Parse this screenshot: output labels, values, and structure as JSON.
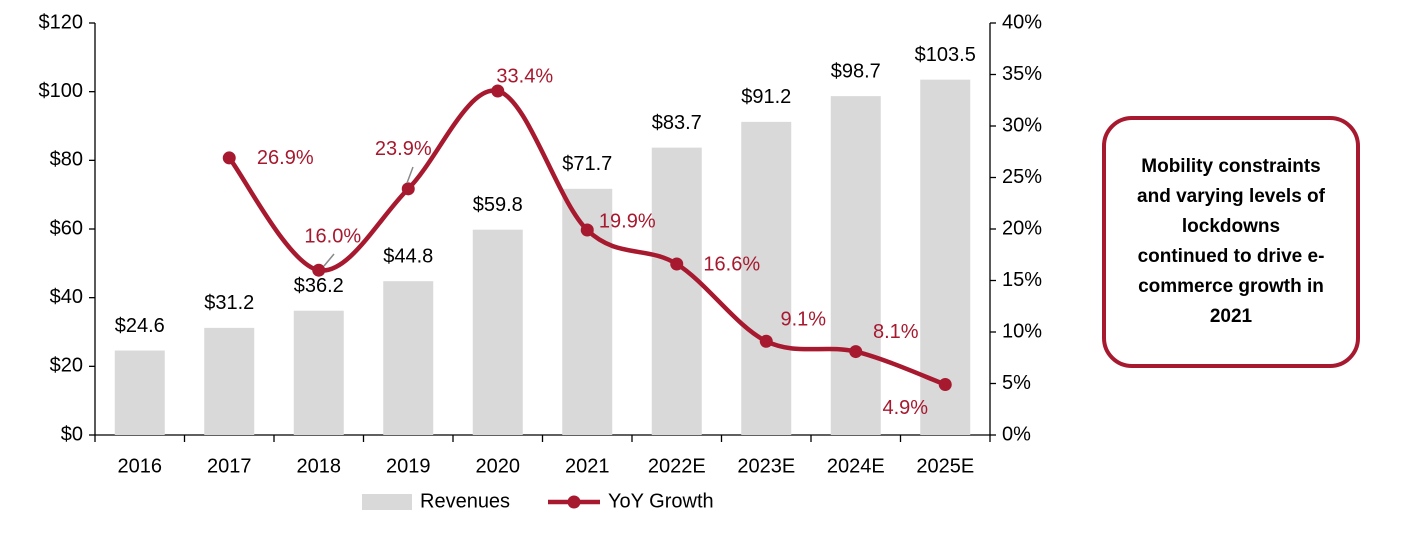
{
  "chart_data": {
    "type": "bar-line",
    "categories": [
      "2016",
      "2017",
      "2018",
      "2019",
      "2020",
      "2021",
      "2022E",
      "2023E",
      "2024E",
      "2025E"
    ],
    "series": [
      {
        "name": "Revenues",
        "type": "bar",
        "color": "#d9d9d9",
        "values": [
          24.6,
          31.2,
          36.2,
          44.8,
          59.8,
          71.7,
          83.7,
          91.2,
          98.7,
          103.5
        ],
        "value_labels": [
          "$24.6",
          "$31.2",
          "$36.2",
          "$44.8",
          "$59.8",
          "$71.7",
          "$83.7",
          "$91.2",
          "$98.7",
          "$103.5"
        ]
      },
      {
        "name": "YoY Growth",
        "type": "line",
        "axis": "y2",
        "color": "#a6192e",
        "values": [
          null,
          26.9,
          16.0,
          23.9,
          33.4,
          19.9,
          16.6,
          9.1,
          8.1,
          4.9
        ],
        "value_labels": [
          null,
          "26.9%",
          "16.0%",
          "23.9%",
          "33.4%",
          "19.9%",
          "16.6%",
          "9.1%",
          "8.1%",
          "4.9%"
        ]
      }
    ],
    "ylim": [
      0,
      120
    ],
    "yticks": [
      {
        "value": 0,
        "label": "$0"
      },
      {
        "value": 20,
        "label": "$20"
      },
      {
        "value": 40,
        "label": "$40"
      },
      {
        "value": 60,
        "label": "$60"
      },
      {
        "value": 80,
        "label": "$80"
      },
      {
        "value": 100,
        "label": "$100"
      },
      {
        "value": 120,
        "label": "$120"
      }
    ],
    "y2lim": [
      0,
      40
    ],
    "y2ticks": [
      {
        "value": 0,
        "label": "0%"
      },
      {
        "value": 5,
        "label": "5%"
      },
      {
        "value": 10,
        "label": "10%"
      },
      {
        "value": 15,
        "label": "15%"
      },
      {
        "value": 20,
        "label": "20%"
      },
      {
        "value": 25,
        "label": "25%"
      },
      {
        "value": 30,
        "label": "30%"
      },
      {
        "value": 35,
        "label": "35%"
      },
      {
        "value": 40,
        "label": "40%"
      }
    ],
    "legend": "bottom",
    "annotation": "Mobility constraints and varying levels of lockdowns continued to drive e-commerce growth in 2021"
  }
}
